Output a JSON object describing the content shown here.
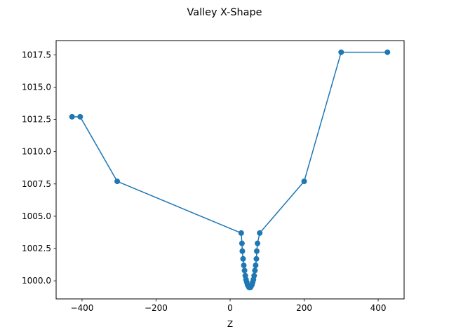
{
  "chart_data": {
    "type": "line",
    "title": "Valley X-Shape",
    "xlabel": "Z",
    "ylabel": "",
    "xlim": [
      -470,
      470
    ],
    "ylim": [
      998.6,
      1018.6
    ],
    "xticks": [
      -400,
      -200,
      0,
      200,
      400
    ],
    "xtick_labels": [
      "−400",
      "−200",
      "0",
      "200",
      "400"
    ],
    "yticks": [
      1000.0,
      1002.5,
      1005.0,
      1007.5,
      1010.0,
      1012.5,
      1015.0,
      1017.5
    ],
    "ytick_labels": [
      "1000.0",
      "1002.5",
      "1005.0",
      "1007.5",
      "1010.0",
      "1012.5",
      "1015.0",
      "1017.5"
    ],
    "grid": false,
    "color": "#1f77b4",
    "marker": "circle",
    "series": [
      {
        "x": [
          -427,
          -405,
          -305,
          30,
          32,
          33,
          35,
          37,
          39,
          41,
          43,
          45,
          47,
          49,
          51,
          53,
          55,
          57,
          59,
          61,
          63,
          65,
          67,
          69,
          71,
          72,
          74,
          80,
          200,
          300,
          425
        ],
        "y": [
          1012.7,
          1012.7,
          1007.7,
          1003.7,
          1002.9,
          1002.3,
          1001.7,
          1001.2,
          1000.8,
          1000.4,
          1000.1,
          999.9,
          999.7,
          999.6,
          999.5,
          999.5,
          999.5,
          999.6,
          999.7,
          999.9,
          1000.1,
          1000.4,
          1000.8,
          1001.2,
          1001.7,
          1002.3,
          1002.9,
          1003.7,
          1007.7,
          1017.7,
          1017.7
        ]
      }
    ]
  }
}
